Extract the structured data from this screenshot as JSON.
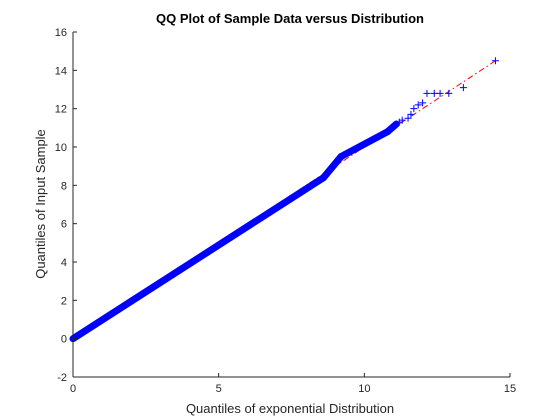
{
  "chart_data": {
    "type": "scatter",
    "title": "QQ Plot of Sample Data versus Distribution",
    "xlabel": "Quantiles of exponential Distribution",
    "ylabel": "Quantiles of Input Sample",
    "xlim": [
      0,
      15
    ],
    "ylim": [
      -2,
      16
    ],
    "xticks": [
      0,
      5,
      10,
      15
    ],
    "yticks": [
      -2,
      0,
      2,
      4,
      6,
      8,
      10,
      12,
      14,
      16
    ],
    "grid": false,
    "legend": "none",
    "colors": {
      "markers": "#0000ff",
      "reference_line": "#ff0000",
      "axes": "#262626"
    },
    "marker": "+",
    "reference_line": {
      "style": "dash-dot",
      "x": [
        0,
        14.5
      ],
      "y": [
        0,
        14.5
      ]
    },
    "series": [
      {
        "dense_segments": [
          {
            "x": [
              0,
              8.6
            ],
            "y": [
              0,
              8.4
            ]
          },
          {
            "x": [
              8.6,
              9.2
            ],
            "y": [
              8.4,
              9.5
            ]
          },
          {
            "x": [
              9.2,
              10.8
            ],
            "y": [
              9.5,
              10.8
            ]
          },
          {
            "x": [
              10.8,
              11.1
            ],
            "y": [
              10.8,
              11.2
            ]
          }
        ],
        "tail_points": [
          {
            "x": 11.2,
            "y": 11.3
          },
          {
            "x": 11.3,
            "y": 11.4
          },
          {
            "x": 11.5,
            "y": 11.5
          },
          {
            "x": 11.6,
            "y": 11.7
          },
          {
            "x": 11.7,
            "y": 12.0
          },
          {
            "x": 11.85,
            "y": 12.2
          },
          {
            "x": 12.0,
            "y": 12.3
          },
          {
            "x": 12.15,
            "y": 12.8
          },
          {
            "x": 12.4,
            "y": 12.8
          },
          {
            "x": 12.6,
            "y": 12.8
          },
          {
            "x": 12.9,
            "y": 12.8
          },
          {
            "x": 13.4,
            "y": 13.1
          },
          {
            "x": 14.5,
            "y": 14.5
          }
        ]
      }
    ]
  }
}
